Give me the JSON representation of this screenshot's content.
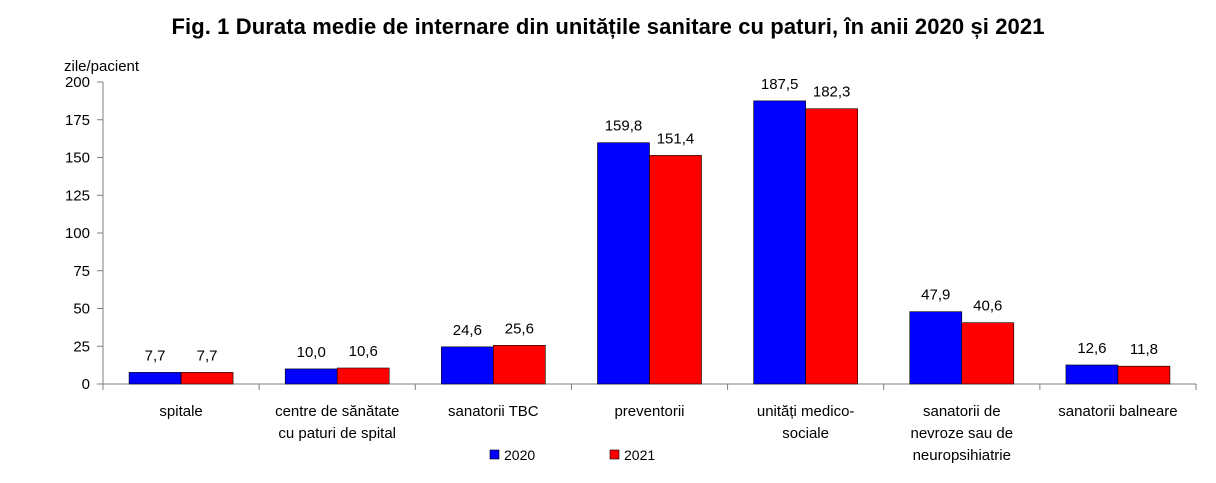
{
  "chart_data": {
    "type": "bar",
    "title": "Fig. 1 Durata medie de internare din unitățile sanitare cu paturi, în anii 2020 și 2021",
    "ylabel": "zile/pacient",
    "xlabel": "",
    "ylim": [
      0,
      200
    ],
    "yticks": [
      0,
      25,
      50,
      75,
      100,
      125,
      150,
      175,
      200
    ],
    "grid": false,
    "legend_position": "bottom-center",
    "categories": [
      [
        "spitale"
      ],
      [
        "centre de sănătate",
        "cu paturi de spital"
      ],
      [
        "sanatorii TBC"
      ],
      [
        "preventorii"
      ],
      [
        "unități medico-",
        "sociale"
      ],
      [
        "sanatorii de",
        "nevroze sau de",
        "neuropsihiatrie"
      ],
      [
        "sanatorii balneare"
      ]
    ],
    "series": [
      {
        "name": "2020",
        "color": "#0000ff",
        "values": [
          7.7,
          10.0,
          24.6,
          159.8,
          187.5,
          47.9,
          12.6
        ],
        "labels": [
          "7,7",
          "10,0",
          "24,6",
          "159,8",
          "187,5",
          "47,9",
          "12,6"
        ]
      },
      {
        "name": "2021",
        "color": "#ff0000",
        "values": [
          7.7,
          10.6,
          25.6,
          151.4,
          182.3,
          40.6,
          11.8
        ],
        "labels": [
          "7,7",
          "10,6",
          "25,6",
          "151,4",
          "182,3",
          "40,6",
          "11,8"
        ]
      }
    ]
  }
}
